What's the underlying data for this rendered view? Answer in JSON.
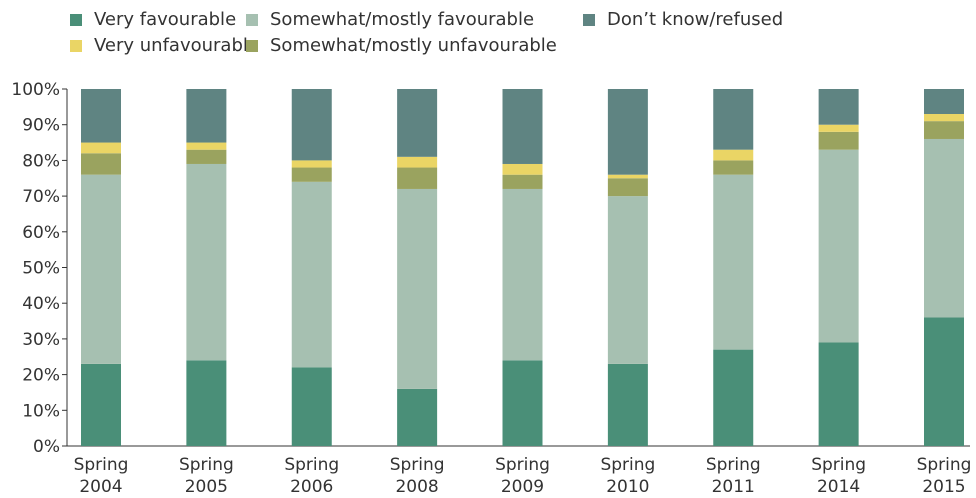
{
  "chart_data": {
    "type": "bar",
    "stacked": true,
    "categories": [
      [
        "Spring",
        "2004"
      ],
      [
        "Spring",
        "2005"
      ],
      [
        "Spring",
        "2006"
      ],
      [
        "Spring",
        "2008"
      ],
      [
        "Spring",
        "2009"
      ],
      [
        "Spring",
        "2010"
      ],
      [
        "Spring",
        "2011"
      ],
      [
        "Spring",
        "2014"
      ],
      [
        "Spring",
        "2015"
      ]
    ],
    "series": [
      {
        "name": "Very favourable",
        "color": "#4a8f78",
        "values": [
          23,
          24,
          22,
          16,
          24,
          23,
          27,
          29,
          36
        ]
      },
      {
        "name": "Somewhat/mostly favourable",
        "color": "#a6c0b1",
        "values": [
          53,
          55,
          52,
          56,
          48,
          47,
          49,
          54,
          50
        ]
      },
      {
        "name": "Somewhat/mostly unfavourable",
        "color": "#9aa35f",
        "values": [
          6,
          4,
          4,
          6,
          4,
          5,
          4,
          5,
          5
        ]
      },
      {
        "name": "Very unfavourable",
        "color": "#ead565",
        "values": [
          3,
          2,
          2,
          3,
          3,
          1,
          3,
          2,
          2
        ]
      },
      {
        "name": "Don’t know/refused",
        "color": "#5f8482",
        "values": [
          15,
          15,
          20,
          19,
          21,
          24,
          17,
          10,
          7
        ]
      }
    ],
    "legend": {
      "placement": "top-left",
      "rows": [
        [
          "Very favourable",
          "Somewhat/mostly favourable",
          "Don’t know/refused"
        ],
        [
          "Very unfavourable",
          "Somewhat/mostly unfavourable"
        ]
      ]
    },
    "y_ticks": [
      "0%",
      "10%",
      "20%",
      "30%",
      "40%",
      "50%",
      "60%",
      "70%",
      "80%",
      "90%",
      "100%"
    ],
    "ylim": [
      0,
      100
    ],
    "grid": false,
    "title": "",
    "xlabel": "",
    "ylabel": ""
  }
}
